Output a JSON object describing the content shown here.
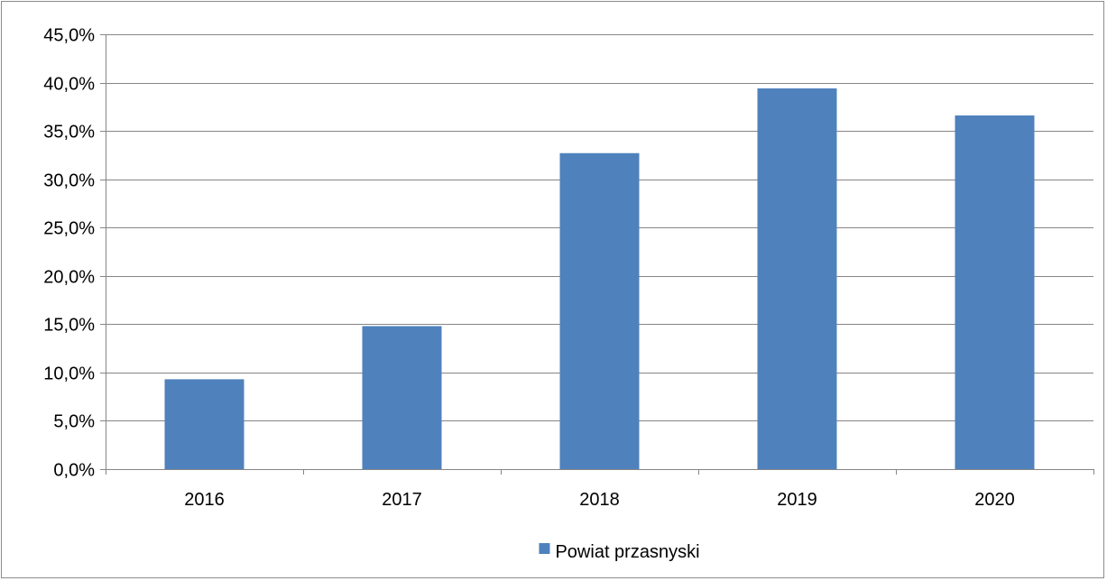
{
  "chart_data": {
    "type": "bar",
    "categories": [
      "2016",
      "2017",
      "2018",
      "2019",
      "2020"
    ],
    "series": [
      {
        "name": "Powiat przasnyski",
        "values": [
          9.3,
          14.8,
          32.7,
          39.4,
          36.6
        ],
        "color": "#4f81bd"
      }
    ],
    "ylim": [
      0,
      45
    ],
    "ytick_values": [
      0,
      5,
      10,
      15,
      20,
      25,
      30,
      35,
      40,
      45
    ],
    "ytick_labels": [
      "0,0%",
      "5,0%",
      "10,0%",
      "15,0%",
      "20,0%",
      "25,0%",
      "30,0%",
      "35,0%",
      "40,0%",
      "45,0%"
    ],
    "grid": true,
    "legend_position": "bottom",
    "title": "",
    "xlabel": "",
    "ylabel": ""
  }
}
